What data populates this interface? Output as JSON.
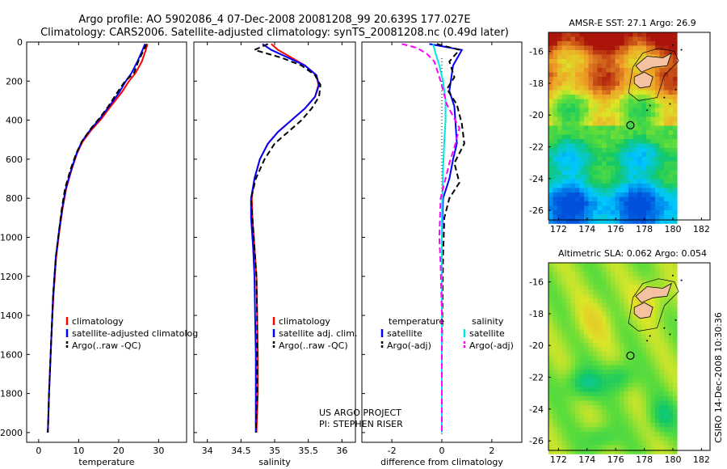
{
  "header": {
    "line1": "Argo profile: AO 5902086_4 07-Dec-2008 20081208_99 20.639S 177.027E",
    "line2": "Climatology: CARS2006. Satellite-adjusted climatology: synTS_20081208.nc (0.49d later)"
  },
  "side_label": "CSIRO 14-Dec-2008 10:30:36",
  "credit": {
    "line1": "US ARGO PROJECT",
    "line2": "PI: STEPHEN RISER"
  },
  "colors": {
    "climatology": "#ff0000",
    "satellite": "#0000ff",
    "argo": "#000000",
    "sat_salinity": "#00e5e5",
    "argo_salinity_adj": "#ff00ff"
  },
  "chart_data": [
    {
      "type": "line",
      "id": "temperature",
      "xlabel": "temperature",
      "ylabel": "",
      "xlim": [
        -3,
        37
      ],
      "ylim": [
        2050,
        0
      ],
      "xticks": [
        0,
        10,
        20,
        30
      ],
      "yticks": [
        0,
        200,
        400,
        600,
        800,
        1000,
        1200,
        1400,
        1600,
        1800,
        2000
      ],
      "legend": [
        "climatology",
        "satellite-adjusted climatolog",
        "Argo(..raw -QC)"
      ],
      "series": [
        {
          "name": "climatology",
          "x": [
            27.2,
            26.8,
            25.8,
            24.2,
            22.6,
            20.7,
            18.0,
            15.8,
            13.2,
            11.0,
            9.6,
            8.3,
            6.9,
            6.0,
            5.3,
            4.4,
            3.7,
            3.2,
            2.9,
            2.6,
            2.45,
            2.3
          ],
          "y": [
            10,
            40,
            100,
            160,
            200,
            260,
            330,
            390,
            450,
            510,
            570,
            650,
            750,
            850,
            950,
            1100,
            1300,
            1500,
            1650,
            1800,
            1900,
            2000
          ]
        },
        {
          "name": "satellite-adjusted climatolog",
          "x": [
            26.6,
            26.0,
            24.7,
            23.2,
            21.8,
            20.1,
            17.6,
            15.4,
            12.9,
            10.8,
            9.5,
            8.2,
            6.8,
            5.9,
            5.2,
            4.3,
            3.6,
            3.2,
            2.9,
            2.6,
            2.45,
            2.3
          ],
          "y": [
            10,
            40,
            100,
            160,
            200,
            260,
            330,
            390,
            450,
            510,
            570,
            650,
            750,
            850,
            950,
            1100,
            1300,
            1500,
            1650,
            1800,
            1900,
            2000
          ]
        },
        {
          "name": "Argo(..raw -QC)",
          "x": [
            27.0,
            26.3,
            24.9,
            23.8,
            21.6,
            19.6,
            17.4,
            15.2,
            12.8,
            10.8,
            9.4,
            8.0,
            6.6,
            5.8,
            5.2,
            4.3,
            3.6,
            3.2,
            2.9,
            2.6,
            2.45,
            2.3
          ],
          "y": [
            10,
            40,
            100,
            160,
            200,
            260,
            330,
            390,
            450,
            510,
            570,
            650,
            750,
            850,
            950,
            1100,
            1300,
            1500,
            1650,
            1800,
            1900,
            2000
          ]
        }
      ]
    },
    {
      "type": "line",
      "id": "salinity",
      "xlabel": "salinity",
      "xlim": [
        33.8,
        36.2
      ],
      "ylim": [
        2050,
        0
      ],
      "xticks": [
        34,
        34.5,
        35,
        35.5,
        36
      ],
      "legend": [
        "climatology",
        "satellite adj. clim.",
        "Argo(..raw -QC)"
      ],
      "series": [
        {
          "name": "climatology",
          "x": [
            34.95,
            35.05,
            35.25,
            35.45,
            35.62,
            35.65,
            35.6,
            35.45,
            35.25,
            35.05,
            34.9,
            34.78,
            34.7,
            34.66,
            34.67,
            34.7,
            34.73,
            34.74,
            34.75,
            34.75,
            34.74,
            34.73
          ],
          "y": [
            10,
            40,
            80,
            120,
            170,
            220,
            280,
            340,
            400,
            460,
            520,
            600,
            700,
            800,
            900,
            1050,
            1200,
            1400,
            1600,
            1800,
            1900,
            2000
          ]
        },
        {
          "name": "satellite adj. clim.",
          "x": [
            34.82,
            34.95,
            35.2,
            35.45,
            35.62,
            35.66,
            35.6,
            35.45,
            35.25,
            35.05,
            34.9,
            34.78,
            34.7,
            34.65,
            34.65,
            34.68,
            34.7,
            34.71,
            34.72,
            34.72,
            34.72,
            34.72
          ],
          "y": [
            10,
            40,
            80,
            120,
            170,
            220,
            280,
            340,
            400,
            460,
            520,
            600,
            700,
            800,
            900,
            1050,
            1200,
            1400,
            1600,
            1800,
            1900,
            2000
          ]
        },
        {
          "name": "Argo(..raw -QC)",
          "x": [
            34.9,
            34.7,
            35.1,
            35.4,
            35.6,
            35.68,
            35.66,
            35.55,
            35.4,
            35.2,
            35.0,
            34.85,
            34.72,
            34.65,
            34.67,
            34.7,
            34.73,
            34.74,
            34.74,
            34.74,
            34.73,
            34.72
          ],
          "y": [
            10,
            40,
            80,
            120,
            170,
            220,
            280,
            340,
            400,
            460,
            520,
            600,
            700,
            800,
            900,
            1050,
            1200,
            1400,
            1600,
            1800,
            1900,
            2000
          ]
        }
      ]
    },
    {
      "type": "line",
      "id": "difference",
      "xlabel": "difference from climatology",
      "xlim": [
        -3.2,
        3.2
      ],
      "ylim": [
        2050,
        0
      ],
      "xticks": [
        -2,
        0,
        2
      ],
      "legend_temperature_title": "temperature",
      "legend_salinity_title": "salinity",
      "legend": [
        "satellite",
        "Argo(-adj)",
        "satellite",
        "Argo(-adj)"
      ],
      "series": [
        {
          "name": "temperature satellite",
          "x": [
            -0.5,
            0.8,
            0.45,
            0.3,
            0.5,
            0.55,
            0.6,
            0.45,
            0.3,
            0.05,
            0.0,
            0.0,
            0.0,
            0.0
          ],
          "y": [
            10,
            40,
            120,
            250,
            330,
            420,
            520,
            600,
            700,
            800,
            1000,
            1200,
            1600,
            2000
          ]
        },
        {
          "name": "temperature Argo(-adj)",
          "x": [
            -0.2,
            0.7,
            0.3,
            0.5,
            0.2,
            0.6,
            0.8,
            0.9,
            0.5,
            0.7,
            0.3,
            0.1,
            0.05,
            0.0,
            0.0
          ],
          "y": [
            10,
            40,
            100,
            180,
            240,
            320,
            420,
            520,
            620,
            720,
            800,
            900,
            1100,
            1600,
            2000
          ]
        },
        {
          "name": "salinity satellite",
          "x": [
            -0.35,
            -0.25,
            -0.1,
            0.05,
            0.15,
            0.15,
            0.1,
            0.05,
            0.0,
            0.0,
            0.0
          ],
          "y": [
            10,
            60,
            120,
            200,
            300,
            400,
            500,
            650,
            900,
            1400,
            2000
          ]
        },
        {
          "name": "salinity Argo(-adj)",
          "x": [
            -1.6,
            -1.0,
            -0.6,
            -0.3,
            -0.05,
            0.2,
            0.7,
            0.5,
            0.3,
            -0.05,
            -0.1,
            -0.05,
            0.0,
            0.0
          ],
          "y": [
            10,
            30,
            60,
            100,
            200,
            320,
            440,
            540,
            620,
            800,
            1000,
            1150,
            1400,
            2000
          ]
        }
      ]
    },
    {
      "type": "heatmap",
      "id": "sst_map",
      "title": "AMSR-E SST: 27.1 Argo: 26.9",
      "xlim": [
        171.3,
        182.6
      ],
      "ylim": [
        -26.6,
        -14.8
      ],
      "xticks": [
        172,
        174,
        176,
        178,
        180,
        182
      ],
      "yticks": [
        -16,
        -18,
        -20,
        -22,
        -24,
        -26
      ],
      "argo_position": {
        "lon": 177.03,
        "lat": -20.64
      }
    },
    {
      "type": "heatmap",
      "id": "sla_map",
      "title": "Altimetric SLA: 0.062 Argo: 0.054",
      "xlim": [
        171.3,
        182.6
      ],
      "ylim": [
        -26.6,
        -14.8
      ],
      "xticks": [
        172,
        174,
        176,
        178,
        180,
        182
      ],
      "yticks": [
        -16,
        -18,
        -20,
        -22,
        -24,
        -26
      ],
      "argo_position": {
        "lon": 177.03,
        "lat": -20.64
      }
    }
  ]
}
